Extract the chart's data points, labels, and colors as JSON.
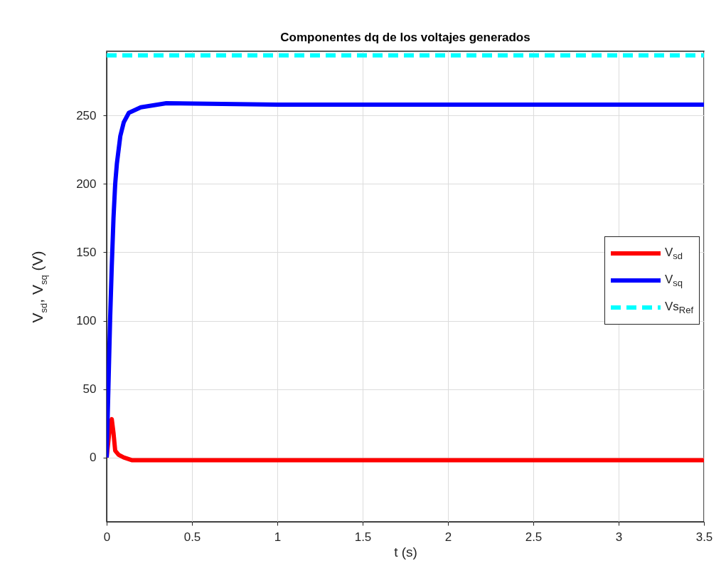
{
  "chart_data": {
    "type": "line",
    "title": "Componentes dq de los voltajes generados",
    "xlabel": "t (s)",
    "ylabel": "V$_{sd}$, V$_{sq}$ (V)",
    "xlim": [
      0,
      3.5
    ],
    "ylim": [
      -47,
      297
    ],
    "xticks": [
      0,
      0.5,
      1,
      1.5,
      2,
      2.5,
      3,
      3.5
    ],
    "yticks": [
      0,
      50,
      100,
      150,
      200,
      250
    ],
    "grid": true,
    "legend": "right",
    "series": [
      {
        "name": "V$_{sd}$",
        "color": "#ff0000",
        "line_style": "solid",
        "x": [
          0,
          0.01,
          0.02,
          0.03,
          0.04,
          0.05,
          0.07,
          0.1,
          0.15,
          0.2,
          0.5,
          1,
          2,
          3,
          3.5
        ],
        "values": [
          0,
          12,
          24,
          28,
          18,
          5,
          2,
          0,
          -2,
          -2,
          -2,
          -2,
          -2,
          -2,
          -2
        ]
      },
      {
        "name": "V$_{sq}$",
        "color": "#0000ff",
        "line_style": "solid",
        "x": [
          0,
          0.01,
          0.02,
          0.03,
          0.04,
          0.05,
          0.06,
          0.08,
          0.1,
          0.13,
          0.2,
          0.35,
          1,
          2,
          3,
          3.5
        ],
        "values": [
          0,
          50,
          100,
          140,
          175,
          200,
          215,
          235,
          245,
          252,
          256,
          259,
          258,
          258,
          258,
          258
        ]
      },
      {
        "name": "Vs$_{Ref}$",
        "color": "#00ffff",
        "line_style": "dashed",
        "x": [
          0,
          3.5
        ],
        "values": [
          294,
          294
        ]
      }
    ]
  }
}
